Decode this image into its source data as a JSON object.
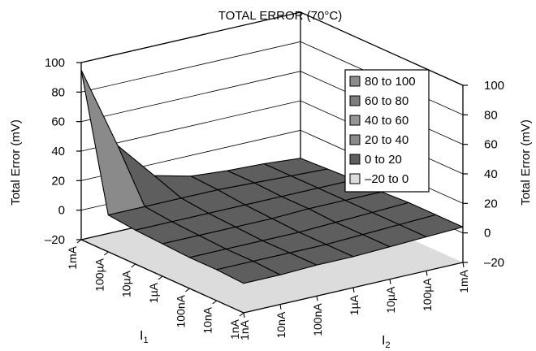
{
  "chart_data": {
    "type": "surface",
    "title": "TOTAL ERROR (70°C)",
    "zlabel": "Total Error (mV)",
    "zlabel_right": "Total Error (mV)",
    "x_axis_name": "I",
    "x_axis_subscript": "1",
    "y_axis_name": "I",
    "y_axis_subscript": "2",
    "zlim": [
      -20,
      100
    ],
    "z_ticks": [
      "100",
      "80",
      "60",
      "40",
      "20",
      "0",
      "–20"
    ],
    "x_categories": [
      "1nA",
      "10nA",
      "100nA",
      "1µA",
      "10µA",
      "100µA",
      "1mA"
    ],
    "y_categories": [
      "1nA",
      "10nA",
      "100nA",
      "1µA",
      "10µA",
      "100µA",
      "1mA"
    ],
    "legend_position": "top-right",
    "legend": [
      {
        "label": "80 to 100",
        "color": "#8c8c8c"
      },
      {
        "label": "60 to 80",
        "color": "#7d7d7d"
      },
      {
        "label": "40 to 60",
        "color": "#959595"
      },
      {
        "label": "20 to 40",
        "color": "#8a8a8a"
      },
      {
        "label": "0 to 20",
        "color": "#5e5e5e"
      },
      {
        "label": "–20 to 0",
        "color": "#dcdcdc"
      }
    ],
    "grid": true,
    "z_values": [
      [
        0,
        1,
        1,
        2,
        3,
        5,
        95
      ],
      [
        0,
        1,
        1,
        2,
        3,
        5,
        38
      ],
      [
        1,
        1,
        1,
        2,
        3,
        5,
        12
      ],
      [
        1,
        1,
        1,
        2,
        3,
        5,
        6
      ],
      [
        2,
        2,
        2,
        3,
        3,
        4,
        4
      ],
      [
        3,
        3,
        3,
        3,
        3,
        3,
        3
      ],
      [
        4,
        4,
        4,
        3,
        3,
        2,
        1
      ]
    ]
  }
}
